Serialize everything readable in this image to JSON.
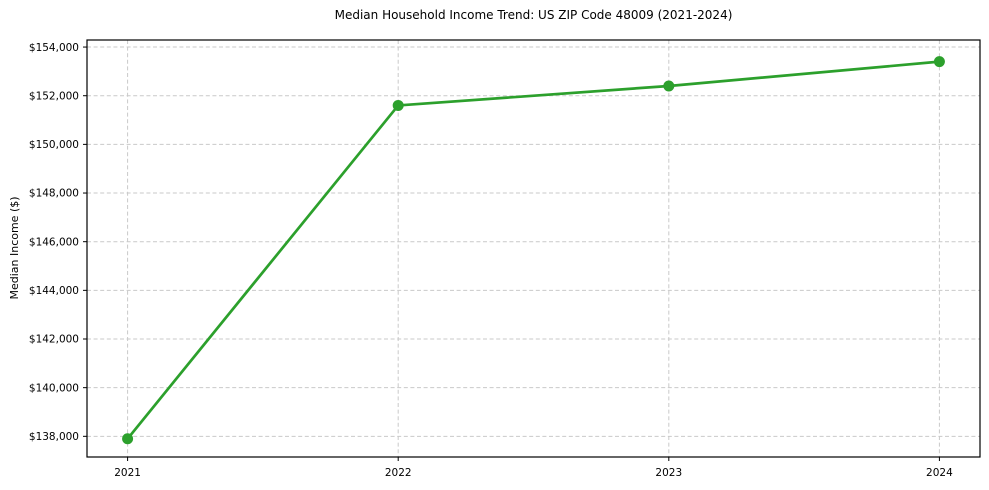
{
  "chart_data": {
    "type": "line",
    "title": "Median Household Income Trend: US ZIP Code 48009 (2021-2024)",
    "xlabel": "",
    "ylabel": "Median Income ($)",
    "x": [
      2021,
      2022,
      2023,
      2024
    ],
    "xtick_labels": [
      "2021",
      "2022",
      "2023",
      "2024"
    ],
    "series": [
      {
        "name": "Median Household Income",
        "values": [
          137900,
          151600,
          152400,
          153400
        ],
        "color": "#2ca02c",
        "marker": "circle",
        "marker_size": 11,
        "line_width": 2.7
      }
    ],
    "yticks": [
      138000,
      140000,
      142000,
      144000,
      146000,
      148000,
      150000,
      152000,
      154000
    ],
    "ytick_labels": [
      "$138,000",
      "$140,000",
      "$142,000",
      "$144,000",
      "$146,000",
      "$148,000",
      "$150,000",
      "$152,000",
      "$154,000"
    ],
    "ylim": [
      137150,
      154290
    ],
    "xlim": [
      2020.85,
      2024.15
    ],
    "grid": true,
    "grid_style": "dashed",
    "legend_position": "none",
    "colors": {
      "line": "#2ca02c",
      "grid": "#c9c9c9",
      "spine": "#000000",
      "text": "#000000",
      "background": "#ffffff"
    }
  }
}
